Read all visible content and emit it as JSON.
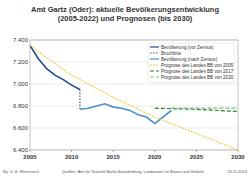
{
  "chart_data": {
    "type": "line",
    "title": "Amt Gartz (Oder): aktuelle Bevölkerungsentwicklung (2005-2022) und Prognosen (bis 2030)",
    "xlim": [
      2005,
      2030
    ],
    "xticks": [
      2005,
      2010,
      2015,
      2020,
      2025,
      2030
    ],
    "ylim": [
      6400,
      7400
    ],
    "yticks": [
      {
        "value": 6400,
        "label": "6.400"
      },
      {
        "value": 6600,
        "label": "6.600"
      },
      {
        "value": 6800,
        "label": "6.800"
      },
      {
        "value": 7000,
        "label": "7.000"
      },
      {
        "value": 7200,
        "label": "7.200"
      },
      {
        "value": 7400,
        "label": "7.400"
      }
    ],
    "grid": true,
    "legend": "upper right",
    "series": [
      {
        "name": "Bevölkerung (vor Zensus)",
        "color": "#1f4e8c",
        "line_style": "solid",
        "x": [
          2005,
          2006,
          2007,
          2008,
          2009,
          2010,
          2011
        ],
        "values": [
          7350,
          7230,
          7140,
          7080,
          7040,
          6990,
          6950
        ]
      },
      {
        "name": "Bruchlinie",
        "color": "#555555",
        "line_style": "dotted",
        "x": [
          2011,
          2011
        ],
        "values": [
          6950,
          6770
        ]
      },
      {
        "name": "Bevölkerung (nach Zensus)",
        "color": "#4a90c8",
        "line_style": "solid",
        "x": [
          2011,
          2012,
          2013,
          2014,
          2015,
          2016,
          2017,
          2018,
          2019,
          2020,
          2021,
          2022
        ],
        "values": [
          6770,
          6780,
          6800,
          6820,
          6790,
          6780,
          6760,
          6720,
          6700,
          6640,
          6700,
          6760
        ]
      },
      {
        "name": "Prognose des Landes BB von 2005",
        "color": "#e6c619",
        "line_style": "dotted",
        "x": [
          2005,
          2010,
          2015,
          2020,
          2025,
          2030
        ],
        "values": [
          7350,
          7080,
          6880,
          6700,
          6550,
          6400
        ]
      },
      {
        "name": "Prognose des Landes BB von 2017",
        "color": "#2e7d32",
        "line_style": "dashed",
        "x": [
          2020,
          2025,
          2030
        ],
        "values": [
          6780,
          6770,
          6750
        ]
      },
      {
        "name": "Prognose des Landes BB von 2020",
        "color": "#7cc37a",
        "line_style": "dashed",
        "x": [
          2022,
          2025,
          2030
        ],
        "values": [
          6780,
          6780,
          6780
        ]
      }
    ],
    "footer": {
      "author": "By: U. E. Ehrenreich",
      "source": "Quellen: Amt für Statistik Berlin-Brandenburg, Landesamt für Bauen und Verkehr",
      "date": "23.11.2023"
    }
  }
}
